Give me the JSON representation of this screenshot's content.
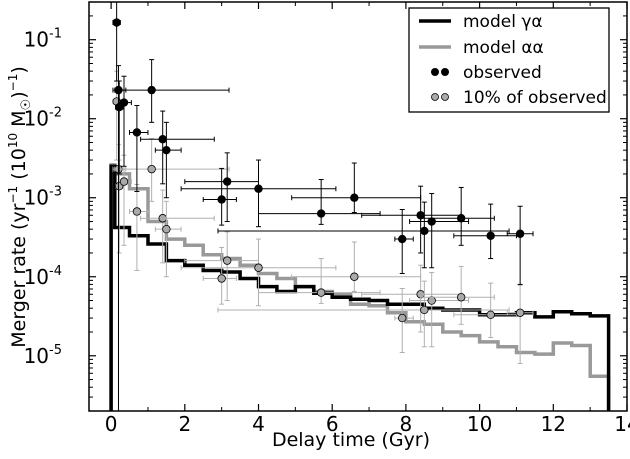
{
  "chart_data": {
    "type": "line",
    "subtype": "step-histogram-with-errorbars",
    "xlabel": "Delay time (Gyr)",
    "ylabel_parts": [
      "Merger rate (yr",
      "−1",
      " (10",
      "10",
      " M",
      "☉",
      ")",
      "−1",
      ")"
    ],
    "xlim": [
      -0.6,
      14.0
    ],
    "ylim": [
      2e-06,
      0.3
    ],
    "yscale": "log",
    "x_ticks": [
      0,
      2,
      4,
      6,
      8,
      10,
      12,
      14
    ],
    "x_tick_labels": [
      "0",
      "2",
      "4",
      "6",
      "8",
      "10",
      "12",
      "14"
    ],
    "y_ticks": [
      {
        "value": 0.1,
        "base": "10",
        "exp": "-1"
      },
      {
        "value": 0.01,
        "base": "10",
        "exp": "-2"
      },
      {
        "value": 0.001,
        "base": "10",
        "exp": "-3"
      },
      {
        "value": 0.0001,
        "base": "10",
        "exp": "-4"
      },
      {
        "value": 1e-05,
        "base": "10",
        "exp": "-5"
      }
    ],
    "legend": {
      "position": "top-right",
      "entries": [
        {
          "label": "model γα",
          "kind": "line",
          "color": "#000000"
        },
        {
          "label": "model αα",
          "kind": "line",
          "color": "#999999"
        },
        {
          "label": "observed",
          "kind": "marker",
          "color": "#000000"
        },
        {
          "label": "10% of observed",
          "kind": "marker",
          "color": "#aaaaaa"
        }
      ]
    },
    "series": [
      {
        "name": "model γα",
        "style": "step",
        "color": "#000000",
        "edges": [
          0,
          0.1,
          0.5,
          1.0,
          1.5,
          2.0,
          2.5,
          3.0,
          3.5,
          4.0,
          4.5,
          5.0,
          5.5,
          6.0,
          6.5,
          7.0,
          7.5,
          8.0,
          8.5,
          9.0,
          9.5,
          10.0,
          10.5,
          11.0,
          11.5,
          12.0,
          12.5,
          13.0,
          13.5
        ],
        "values": [
          0.0025,
          0.00042,
          0.00033,
          0.00026,
          0.00016,
          0.00014,
          0.00012,
          0.000115,
          9.5e-05,
          7.5e-05,
          6.5e-05,
          7.5e-05,
          6.2e-05,
          5.5e-05,
          5.2e-05,
          5e-05,
          4.5e-05,
          4.5e-05,
          4e-05,
          3.8e-05,
          3.8e-05,
          3.3e-05,
          3.3e-05,
          3.5e-05,
          3.1e-05,
          3.6e-05,
          3.4e-05,
          3.2e-05
        ]
      },
      {
        "name": "model αα",
        "style": "step",
        "color": "#999999",
        "edges": [
          0,
          0.1,
          0.5,
          1.0,
          1.5,
          2.0,
          2.5,
          3.0,
          3.5,
          4.0,
          4.5,
          5.0,
          5.5,
          6.0,
          6.5,
          7.0,
          7.5,
          8.0,
          8.5,
          9.0,
          9.5,
          10.0,
          10.5,
          11.0,
          11.5,
          12.0,
          12.5,
          13.0,
          13.5
        ],
        "values": [
          0.0026,
          0.002,
          0.0013,
          0.0005,
          0.0003,
          0.00025,
          0.00019,
          0.00017,
          0.00014,
          0.00011,
          9.5e-05,
          7.5e-05,
          6.5e-05,
          6e-05,
          4.5e-05,
          4.3e-05,
          3.5e-05,
          2.7e-05,
          2.5e-05,
          2e-05,
          1.8e-05,
          1.5e-05,
          1.3e-05,
          1.1e-05,
          1.05e-05,
          1.45e-05,
          1.35e-05,
          5.5e-06
        ]
      },
      {
        "name": "observed",
        "style": "errorbar-points",
        "color": "#000000",
        "points": [
          {
            "x": 0.15,
            "y": 0.165,
            "xerr": [
              0.1,
              0.1
            ],
            "yerr": [
              0.135,
              0.235
            ]
          },
          {
            "x": 0.2,
            "y": 0.023,
            "xerr": [
              0.15,
              0.2
            ],
            "yerr": [
              0.023,
              0.024
            ]
          },
          {
            "x": 0.22,
            "y": 0.014,
            "xerr": [
              0.1,
              0.1
            ],
            "yerr": [
              0.012,
              0.016
            ]
          },
          {
            "x": 0.35,
            "y": 0.016,
            "xerr": [
              0.15,
              0.2
            ],
            "yerr": [
              0.0135,
              0.0185
            ]
          },
          {
            "x": 0.7,
            "y": 0.0067,
            "xerr": [
              0.2,
              0.3
            ],
            "yerr": [
              0.0055,
              0.008
            ]
          },
          {
            "x": 1.1,
            "y": 0.023,
            "xerr": [
              1.0,
              2.1
            ],
            "yerr": [
              0.014,
              0.033
            ]
          },
          {
            "x": 1.4,
            "y": 0.0055,
            "xerr": [
              0.6,
              1.4
            ],
            "yerr": [
              0.004,
              0.007
            ]
          },
          {
            "x": 1.5,
            "y": 0.004,
            "xerr": [
              0.3,
              0.4
            ],
            "yerr": [
              0.003,
              0.005
            ]
          },
          {
            "x": 3.0,
            "y": 0.00095,
            "xerr": [
              0.5,
              0.4
            ],
            "yerr": [
              0.0005,
              0.0014
            ]
          },
          {
            "x": 3.15,
            "y": 0.0016,
            "xerr": [
              1.15,
              0.85
            ],
            "yerr": [
              0.0011,
              0.0021
            ]
          },
          {
            "x": 4.0,
            "y": 0.0013,
            "xerr": [
              2.1,
              2.1
            ],
            "yerr": [
              0.00087,
              0.0017
            ]
          },
          {
            "x": 5.7,
            "y": 0.00063,
            "xerr": [
              1.7,
              1.6
            ],
            "yerr": [
              0.00017,
              0.00107
            ]
          },
          {
            "x": 6.6,
            "y": 0.001,
            "xerr": [
              1.7,
              1.8
            ],
            "yerr": [
              0.00035,
              0.00175
            ]
          },
          {
            "x": 7.9,
            "y": 0.0003,
            "xerr": [
              0.2,
              0.3
            ],
            "yerr": [
              0.00019,
              0.00041
            ]
          },
          {
            "x": 8.4,
            "y": 0.0006,
            "xerr": [
              1.6,
              1.1
            ],
            "yerr": [
              0.0004,
              0.0008
            ]
          },
          {
            "x": 8.5,
            "y": 0.00038,
            "xerr": [
              5.6,
              2.3
            ],
            "yerr": [
              0.00025,
              0.0005
            ]
          },
          {
            "x": 8.7,
            "y": 0.0005,
            "xerr": [
              0.6,
              1.0
            ],
            "yerr": [
              0.00037,
              0.00063
            ]
          },
          {
            "x": 9.5,
            "y": 0.00055,
            "xerr": [
              1.1,
              0.9
            ],
            "yerr": [
              0.0003,
              0.0008
            ]
          },
          {
            "x": 10.3,
            "y": 0.00033,
            "xerr": [
              1.0,
              0.7
            ],
            "yerr": [
              0.00016,
              0.0005
            ]
          },
          {
            "x": 11.1,
            "y": 0.00035,
            "xerr": [
              0.35,
              0.35
            ],
            "yerr": [
              0.00027,
              0.00043
            ]
          }
        ]
      },
      {
        "name": "10% of observed",
        "style": "errorbar-points",
        "color": "#aaaaaa",
        "points": [
          {
            "x": 0.15,
            "y": 0.0165,
            "xerr": [
              0.1,
              0.1
            ],
            "yerr": [
              0.0135,
              0.0235
            ]
          },
          {
            "x": 0.2,
            "y": 0.0023,
            "xerr": [
              0.15,
              0.2
            ],
            "yerr": [
              0.0023,
              0.0024
            ]
          },
          {
            "x": 0.22,
            "y": 0.0014,
            "xerr": [
              0.1,
              0.1
            ],
            "yerr": [
              0.0012,
              0.0016
            ]
          },
          {
            "x": 0.35,
            "y": 0.0016,
            "xerr": [
              0.15,
              0.2
            ],
            "yerr": [
              0.00135,
              0.00185
            ]
          },
          {
            "x": 0.7,
            "y": 0.00067,
            "xerr": [
              0.2,
              0.3
            ],
            "yerr": [
              0.00055,
              0.0008
            ]
          },
          {
            "x": 1.1,
            "y": 0.0023,
            "xerr": [
              1.0,
              2.1
            ],
            "yerr": [
              0.0014,
              0.0033
            ]
          },
          {
            "x": 1.4,
            "y": 0.00055,
            "xerr": [
              0.6,
              1.4
            ],
            "yerr": [
              0.0004,
              0.0007
            ]
          },
          {
            "x": 1.5,
            "y": 0.0004,
            "xerr": [
              0.3,
              0.4
            ],
            "yerr": [
              0.0003,
              0.0005
            ]
          },
          {
            "x": 3.0,
            "y": 9.5e-05,
            "xerr": [
              0.5,
              0.4
            ],
            "yerr": [
              5e-05,
              0.00014
            ]
          },
          {
            "x": 3.15,
            "y": 0.00016,
            "xerr": [
              1.15,
              0.85
            ],
            "yerr": [
              0.00011,
              0.00021
            ]
          },
          {
            "x": 4.0,
            "y": 0.00013,
            "xerr": [
              2.1,
              2.1
            ],
            "yerr": [
              8.7e-05,
              0.00017
            ]
          },
          {
            "x": 5.7,
            "y": 6.3e-05,
            "xerr": [
              1.7,
              1.6
            ],
            "yerr": [
              1.7e-05,
              0.000107
            ]
          },
          {
            "x": 6.6,
            "y": 0.0001,
            "xerr": [
              1.7,
              1.8
            ],
            "yerr": [
              3.5e-05,
              0.000175
            ]
          },
          {
            "x": 7.9,
            "y": 3e-05,
            "xerr": [
              0.2,
              0.3
            ],
            "yerr": [
              1.9e-05,
              4.1e-05
            ]
          },
          {
            "x": 8.4,
            "y": 6e-05,
            "xerr": [
              1.6,
              1.1
            ],
            "yerr": [
              4e-05,
              8e-05
            ]
          },
          {
            "x": 8.5,
            "y": 3.8e-05,
            "xerr": [
              5.6,
              2.3
            ],
            "yerr": [
              2.5e-05,
              5e-05
            ]
          },
          {
            "x": 8.7,
            "y": 5e-05,
            "xerr": [
              0.6,
              1.0
            ],
            "yerr": [
              3.7e-05,
              6.3e-05
            ]
          },
          {
            "x": 9.5,
            "y": 5.5e-05,
            "xerr": [
              1.1,
              0.9
            ],
            "yerr": [
              3e-05,
              8e-05
            ]
          },
          {
            "x": 10.3,
            "y": 3.3e-05,
            "xerr": [
              1.0,
              0.7
            ],
            "yerr": [
              1.6e-05,
              5e-05
            ]
          },
          {
            "x": 11.1,
            "y": 3.5e-05,
            "xerr": [
              0.35,
              0.35
            ],
            "yerr": [
              2.7e-05,
              4.3e-05
            ]
          }
        ]
      }
    ]
  }
}
